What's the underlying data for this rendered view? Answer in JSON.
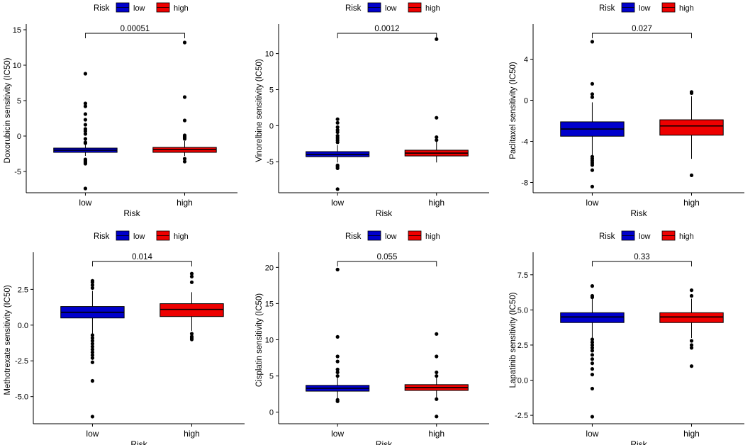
{
  "colors": {
    "low": "#0000CC",
    "high": "#EE0000",
    "axis": "#000000"
  },
  "legend": {
    "title": "Risk",
    "items": [
      {
        "label": "low",
        "color": "#0000CC"
      },
      {
        "label": "high",
        "color": "#EE0000"
      }
    ]
  },
  "chart_data": [
    {
      "type": "box",
      "title": "",
      "xlabel": "Risk",
      "ylabel": "Doxorubicin sensitivity (IC50)",
      "categories": [
        "low",
        "high"
      ],
      "yticks": [
        -5,
        0,
        5,
        10,
        15
      ],
      "ylim": [
        -8.0,
        15.2
      ],
      "pvalue": "0.00051",
      "boxes": [
        {
          "name": "low",
          "q1": -2.3,
          "median": -2.0,
          "q3": -1.7,
          "whisker_low": -2.8,
          "whisker_high": -1.2,
          "outliers": [
            8.8,
            4.6,
            4.2,
            3.1,
            2.3,
            1.6,
            1.0,
            0.7,
            0.3,
            -0.4,
            -0.9,
            -1.0,
            -3.3,
            -3.5,
            -3.7,
            -3.9,
            -7.4
          ]
        },
        {
          "name": "high",
          "q1": -2.3,
          "median": -1.9,
          "q3": -1.6,
          "whisker_low": -2.8,
          "whisker_high": -0.7,
          "outliers": [
            13.2,
            5.5,
            2.2,
            0.1,
            -0.1,
            -0.2,
            -0.4,
            -3.2,
            -3.6
          ]
        }
      ]
    },
    {
      "type": "box",
      "title": "",
      "xlabel": "Risk",
      "ylabel": "Vinorelbine sensitivity (IC50)",
      "categories": [
        "low",
        "high"
      ],
      "yticks": [
        -5,
        0,
        5,
        10
      ],
      "ylim": [
        -9.3,
        13.5
      ],
      "pvalue": "0.0012",
      "boxes": [
        {
          "name": "low",
          "q1": -4.3,
          "median": -4.0,
          "q3": -3.6,
          "whisker_low": -5.1,
          "whisker_high": -2.7,
          "outliers": [
            0.9,
            0.4,
            -0.2,
            -0.6,
            -0.9,
            -1.4,
            -1.7,
            -2.0,
            -2.3,
            -5.5,
            -5.7,
            -5.9,
            -8.8
          ]
        },
        {
          "name": "high",
          "q1": -4.2,
          "median": -3.8,
          "q3": -3.4,
          "whisker_low": -5.1,
          "whisker_high": -2.2,
          "outliers": [
            12.0,
            1.1,
            -1.6,
            -2.0
          ]
        }
      ]
    },
    {
      "type": "box",
      "title": "",
      "xlabel": "Risk",
      "ylabel": "Paclitaxel sensitivity (IC50)",
      "categories": [
        "low",
        "high"
      ],
      "yticks": [
        -8,
        -4,
        0,
        4
      ],
      "ylim": [
        -9.0,
        7.0
      ],
      "pvalue": "0.027",
      "boxes": [
        {
          "name": "low",
          "q1": -3.5,
          "median": -2.8,
          "q3": -2.1,
          "whisker_low": -5.4,
          "whisker_high": -0.2,
          "outliers": [
            5.7,
            1.6,
            0.6,
            0.3,
            -5.5,
            -5.7,
            -5.9,
            -6.1,
            -6.3,
            -6.8,
            -8.4
          ]
        },
        {
          "name": "high",
          "q1": -3.4,
          "median": -2.5,
          "q3": -1.9,
          "whisker_low": -5.7,
          "whisker_high": 0.4,
          "outliers": [
            0.8,
            0.7,
            -7.3
          ]
        }
      ]
    },
    {
      "type": "box",
      "title": "",
      "xlabel": "Risk",
      "ylabel": "Methotrexate sensitivity (IC50)",
      "categories": [
        "low",
        "high"
      ],
      "yticks": [
        -5.0,
        -2.5,
        0.0,
        2.5
      ],
      "ylabels": [
        "-5.0",
        "-2.5",
        "0.0",
        "2.5"
      ],
      "ylim": [
        -6.9,
        4.8
      ],
      "pvalue": "0.014",
      "boxes": [
        {
          "name": "low",
          "q1": 0.5,
          "median": 0.9,
          "q3": 1.3,
          "whisker_low": -0.6,
          "whisker_high": 2.4,
          "outliers": [
            3.1,
            3.0,
            2.8,
            2.6,
            -0.7,
            -0.9,
            -1.1,
            -1.3,
            -1.5,
            -1.7,
            -1.9,
            -2.1,
            -2.3,
            -2.6,
            -3.9,
            -6.4
          ]
        },
        {
          "name": "high",
          "q1": 0.6,
          "median": 1.1,
          "q3": 1.5,
          "whisker_low": -0.4,
          "whisker_high": 2.3,
          "outliers": [
            3.6,
            3.4,
            3.0,
            -0.6,
            -0.8,
            -0.9,
            -1.0
          ]
        }
      ]
    },
    {
      "type": "box",
      "title": "",
      "xlabel": "Risk",
      "ylabel": "Cisplatin sensitivity (IC50)",
      "categories": [
        "low",
        "high"
      ],
      "yticks": [
        0,
        5,
        10,
        15,
        20
      ],
      "ylim": [
        -1.6,
        21.5
      ],
      "pvalue": "0.055",
      "boxes": [
        {
          "name": "low",
          "q1": 2.9,
          "median": 3.3,
          "q3": 3.7,
          "whisker_low": 1.8,
          "whisker_high": 4.8,
          "outliers": [
            19.7,
            10.4,
            7.7,
            7.0,
            5.9,
            5.5,
            5.0,
            1.7,
            1.5
          ]
        },
        {
          "name": "high",
          "q1": 3.0,
          "median": 3.4,
          "q3": 3.8,
          "whisker_low": 1.9,
          "whisker_high": 4.9,
          "outliers": [
            10.8,
            7.7,
            5.5,
            5.0,
            1.8,
            -0.6
          ]
        }
      ]
    },
    {
      "type": "box",
      "title": "",
      "xlabel": "Risk",
      "ylabel": "Lapatinib sensitivity (IC50)",
      "categories": [
        "low",
        "high"
      ],
      "yticks": [
        -2.5,
        0.0,
        2.5,
        5.0,
        7.5
      ],
      "ylabels": [
        "-2.5",
        "0.0",
        "2.5",
        "5.0",
        "7.5"
      ],
      "ylim": [
        -3.1,
        8.8
      ],
      "pvalue": "0.33",
      "boxes": [
        {
          "name": "low",
          "q1": 4.1,
          "median": 4.5,
          "q3": 4.8,
          "whisker_low": 3.0,
          "whisker_high": 5.8,
          "outliers": [
            6.7,
            6.0,
            5.9,
            2.9,
            2.7,
            2.5,
            2.3,
            2.1,
            1.8,
            1.5,
            1.2,
            0.8,
            0.4,
            -0.6,
            -2.6
          ]
        },
        {
          "name": "high",
          "q1": 4.1,
          "median": 4.5,
          "q3": 4.8,
          "whisker_low": 3.0,
          "whisker_high": 5.8,
          "outliers": [
            6.4,
            6.0,
            2.8,
            2.5,
            2.3,
            1.0
          ]
        }
      ]
    }
  ]
}
